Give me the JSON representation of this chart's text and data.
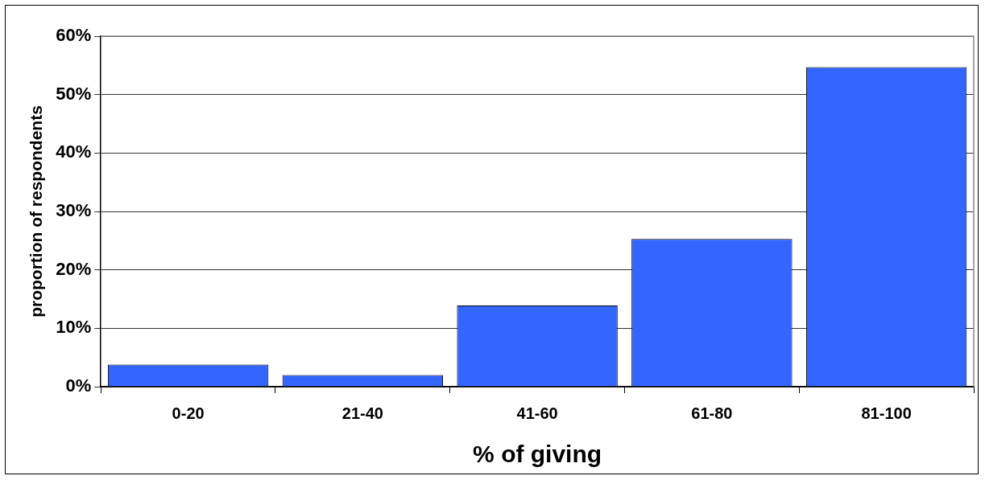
{
  "chart_data": {
    "type": "bar",
    "xlabel": "% of giving",
    "ylabel": "proportion of respondents",
    "categories": [
      "0-20",
      "21-40",
      "41-60",
      "61-80",
      "81-100"
    ],
    "values": [
      3.8,
      2.0,
      13.9,
      25.3,
      54.7
    ],
    "color": "#3366ff",
    "ylim": [
      0,
      60
    ],
    "yticks": [
      {
        "value": 0,
        "label": "0%"
      },
      {
        "value": 10,
        "label": "10%"
      },
      {
        "value": 20,
        "label": "20%"
      },
      {
        "value": 30,
        "label": "30%"
      },
      {
        "value": 40,
        "label": "40%"
      },
      {
        "value": 50,
        "label": "50%"
      },
      {
        "value": 60,
        "label": "60%"
      }
    ],
    "grid": "y",
    "legend": false
  }
}
